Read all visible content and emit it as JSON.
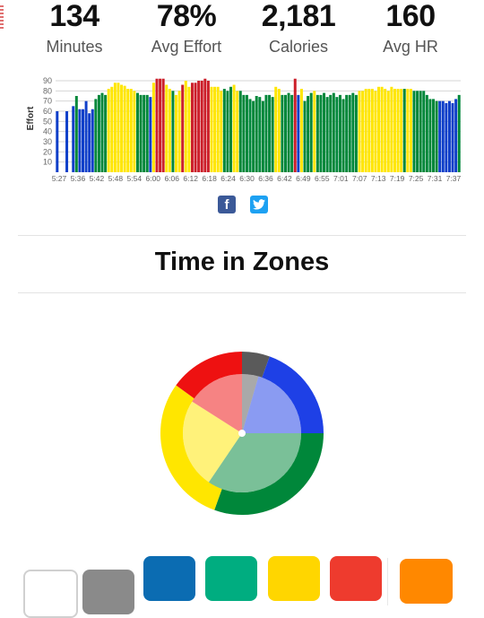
{
  "stats": [
    {
      "value": "134",
      "label": "Minutes"
    },
    {
      "value": "78%",
      "label": "Avg Effort"
    },
    {
      "value": "2,181",
      "label": "Calories"
    },
    {
      "value": "160",
      "label": "Avg HR"
    }
  ],
  "share": {
    "facebook_icon": "f",
    "twitter_icon": "t"
  },
  "section_title": "Time in Zones",
  "zone_colors": {
    "gray": "#5a5a5a",
    "blue": "#1e40e6",
    "green": "#00873a",
    "yellow": "#ffe600",
    "red": "#ee1111"
  },
  "zone_wheel": {
    "outer": [
      {
        "zone": "gray",
        "fraction": 0.055
      },
      {
        "zone": "blue",
        "fraction": 0.195
      },
      {
        "zone": "green",
        "fraction": 0.305
      },
      {
        "zone": "yellow",
        "fraction": 0.295
      },
      {
        "zone": "red",
        "fraction": 0.15
      }
    ],
    "inner": [
      {
        "zone": "gray",
        "fraction": 0.045
      },
      {
        "zone": "blue",
        "fraction": 0.205
      },
      {
        "zone": "green",
        "fraction": 0.345
      },
      {
        "zone": "yellow",
        "fraction": 0.245
      },
      {
        "zone": "red",
        "fraction": 0.16
      }
    ]
  },
  "zone_swatches": [
    {
      "name": "white",
      "color": "#ffffff",
      "border": "#d0d0d0"
    },
    {
      "name": "gray",
      "color": "#8a8a8a"
    },
    {
      "name": "blue",
      "color": "#0b6cb2"
    },
    {
      "name": "green",
      "color": "#00ad80"
    },
    {
      "name": "yellow",
      "color": "#ffd600"
    },
    {
      "name": "red",
      "color": "#ee3b2e"
    },
    {
      "name": "orange",
      "color": "#ff8800"
    }
  ],
  "chart_data": {
    "type": "bar",
    "title": "",
    "xlabel": "",
    "ylabel": "Effort",
    "ylim": [
      0,
      90
    ],
    "yticks": [
      10,
      20,
      30,
      40,
      50,
      60,
      70,
      80,
      90
    ],
    "grid": true,
    "x_tick_labels": [
      "5:27",
      "5:36",
      "5:42",
      "5:48",
      "5:54",
      "6:00",
      "6:06",
      "6:12",
      "6:18",
      "6:24",
      "6:30",
      "6:36",
      "6:42",
      "6:49",
      "6:55",
      "7:01",
      "7:07",
      "7:13",
      "7:19",
      "7:25",
      "7:31",
      "7:37"
    ],
    "values": [
      60,
      0,
      0,
      60,
      0,
      65,
      75,
      62,
      62,
      70,
      58,
      62,
      72,
      76,
      78,
      76,
      82,
      84,
      88,
      88,
      86,
      85,
      82,
      82,
      80,
      78,
      76,
      76,
      76,
      74,
      88,
      92,
      92,
      92,
      86,
      82,
      80,
      76,
      80,
      86,
      90,
      84,
      88,
      88,
      90,
      90,
      92,
      90,
      84,
      84,
      84,
      80,
      82,
      80,
      84,
      86,
      80,
      80,
      76,
      76,
      72,
      70,
      75,
      74,
      70,
      76,
      76,
      74,
      84,
      82,
      76,
      76,
      78,
      76,
      92,
      76,
      82,
      70,
      75,
      78,
      80,
      76,
      76,
      78,
      74,
      76,
      78,
      74,
      76,
      72,
      76,
      76,
      78,
      76,
      80,
      80,
      82,
      82,
      82,
      80,
      84,
      84,
      82,
      80,
      84,
      82,
      82,
      82,
      82,
      82,
      82,
      80,
      80,
      80,
      80,
      76,
      72,
      72,
      70,
      70,
      70,
      68,
      70,
      68,
      72,
      76
    ],
    "colors": [
      "blue",
      "blue",
      "blue",
      "blue",
      "blue",
      "blue",
      "green",
      "blue",
      "blue",
      "blue",
      "blue",
      "blue",
      "green",
      "green",
      "green",
      "green",
      "yellow",
      "yellow",
      "yellow",
      "yellow",
      "yellow",
      "yellow",
      "yellow",
      "yellow",
      "yellow",
      "green",
      "green",
      "green",
      "green",
      "blue",
      "yellow",
      "red",
      "red",
      "red",
      "yellow",
      "yellow",
      "green",
      "yellow",
      "yellow",
      "red",
      "yellow",
      "yellow",
      "red",
      "red",
      "red",
      "red",
      "red",
      "red",
      "yellow",
      "yellow",
      "yellow",
      "yellow",
      "green",
      "green",
      "green",
      "yellow",
      "yellow",
      "green",
      "green",
      "green",
      "green",
      "green",
      "green",
      "green",
      "green",
      "green",
      "green",
      "green",
      "yellow",
      "yellow",
      "green",
      "green",
      "green",
      "green",
      "red",
      "blue",
      "yellow",
      "green",
      "green",
      "green",
      "yellow",
      "green",
      "green",
      "green",
      "green",
      "green",
      "green",
      "green",
      "green",
      "green",
      "green",
      "green",
      "green",
      "green",
      "yellow",
      "yellow",
      "yellow",
      "yellow",
      "yellow",
      "yellow",
      "yellow",
      "yellow",
      "yellow",
      "yellow",
      "yellow",
      "yellow",
      "yellow",
      "yellow",
      "green",
      "yellow",
      "yellow",
      "green",
      "green",
      "green",
      "green",
      "green",
      "green",
      "green",
      "green",
      "blue",
      "blue",
      "blue",
      "blue",
      "blue",
      "blue",
      "green",
      "green",
      "green"
    ]
  }
}
